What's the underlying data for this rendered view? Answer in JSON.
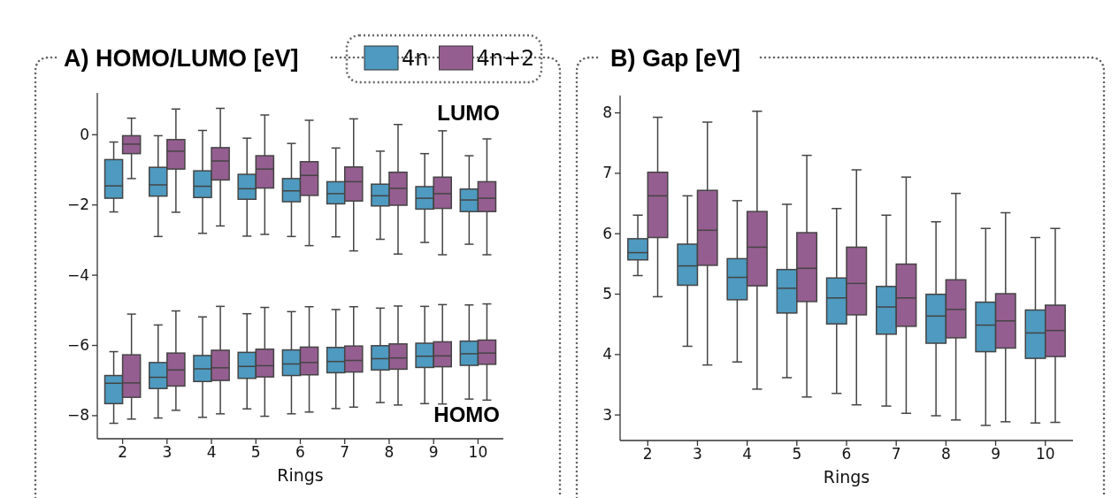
{
  "chart_data": [
    {
      "type": "box",
      "title": "A) HOMO/LUMO [eV]",
      "xlabel": "Rings",
      "categories": [
        "2",
        "3",
        "4",
        "5",
        "6",
        "7",
        "8",
        "9",
        "10"
      ],
      "ylim": [
        -8.67,
        1.18
      ],
      "yticks": [
        {
          "value": -8,
          "label": "−8"
        },
        {
          "value": -6,
          "label": "−6"
        },
        {
          "value": -4,
          "label": "−4"
        },
        {
          "value": -2,
          "label": "−2"
        },
        {
          "value": 0,
          "label": "0"
        }
      ],
      "legend": "top right",
      "annotations": [
        "LUMO",
        "HOMO"
      ],
      "series": [
        {
          "name": "4n",
          "color": "#4e9ac0",
          "boxes": [
            {
              "low": -2.21,
              "q1": -1.82,
              "median": -1.47,
              "q3": -0.72,
              "high": -0.22
            },
            {
              "low": -2.91,
              "q1": -1.76,
              "median": -1.44,
              "q3": -0.94,
              "high": -0.04
            },
            {
              "low": -2.82,
              "q1": -1.8,
              "median": -1.48,
              "q3": -1.04,
              "high": 0.11
            },
            {
              "low": -2.9,
              "q1": -1.85,
              "median": -1.55,
              "q3": -1.14,
              "high": -0.11
            },
            {
              "low": -2.91,
              "q1": -1.92,
              "median": -1.61,
              "q3": -1.26,
              "high": -0.26
            },
            {
              "low": -2.92,
              "q1": -1.98,
              "median": -1.69,
              "q3": -1.35,
              "high": -0.39
            },
            {
              "low": -2.99,
              "q1": -2.04,
              "median": -1.75,
              "q3": -1.42,
              "high": -0.48
            },
            {
              "low": -3.08,
              "q1": -2.13,
              "median": -1.82,
              "q3": -1.49,
              "high": -0.55
            },
            {
              "low": -3.13,
              "q1": -2.2,
              "median": -1.87,
              "q3": -1.56,
              "high": -0.61
            }
          ]
        },
        {
          "name": "4n+2",
          "color": "#955e90",
          "boxes": [
            {
              "low": -1.26,
              "q1": -0.55,
              "median": -0.28,
              "q3": -0.04,
              "high": 0.46
            },
            {
              "low": -2.22,
              "q1": -0.99,
              "median": -0.48,
              "q3": -0.15,
              "high": 0.72
            },
            {
              "low": -2.61,
              "q1": -1.3,
              "median": -0.76,
              "q3": -0.38,
              "high": 0.74
            },
            {
              "low": -2.85,
              "q1": -1.53,
              "median": -0.99,
              "q3": -0.61,
              "high": 0.55
            },
            {
              "low": -3.17,
              "q1": -1.74,
              "median": -1.17,
              "q3": -0.78,
              "high": 0.4
            },
            {
              "low": -3.32,
              "q1": -1.9,
              "median": -1.35,
              "q3": -0.93,
              "high": 0.44
            },
            {
              "low": -3.41,
              "q1": -2.02,
              "median": -1.54,
              "q3": -1.08,
              "high": 0.28
            },
            {
              "low": -3.43,
              "q1": -2.11,
              "median": -1.69,
              "q3": -1.22,
              "high": 0.1
            },
            {
              "low": -3.43,
              "q1": -2.2,
              "median": -1.82,
              "q3": -1.35,
              "high": -0.13
            }
          ]
        },
        {
          "color": "#4e9ac0",
          "boxes": [
            {
              "low": -8.23,
              "q1": -7.67,
              "median": -7.09,
              "q3": -6.87,
              "high": -6.19
            },
            {
              "low": -8.08,
              "q1": -7.24,
              "median": -6.92,
              "q3": -6.5,
              "high": -5.43
            },
            {
              "low": -8.06,
              "q1": -7.04,
              "median": -6.68,
              "q3": -6.3,
              "high": -5.2
            },
            {
              "low": -7.82,
              "q1": -6.95,
              "median": -6.61,
              "q3": -6.21,
              "high": -5.11
            },
            {
              "low": -7.96,
              "q1": -6.87,
              "median": -6.54,
              "q3": -6.14,
              "high": -5.05
            },
            {
              "low": -7.81,
              "q1": -6.79,
              "median": -6.47,
              "q3": -6.07,
              "high": -4.99
            },
            {
              "low": -7.64,
              "q1": -6.71,
              "median": -6.39,
              "q3": -6.02,
              "high": -4.95
            },
            {
              "low": -7.67,
              "q1": -6.64,
              "median": -6.32,
              "q3": -5.95,
              "high": -4.9
            },
            {
              "low": -7.54,
              "q1": -6.58,
              "median": -6.25,
              "q3": -5.89,
              "high": -4.86
            }
          ]
        },
        {
          "color": "#955e90",
          "boxes": [
            {
              "low": -8.11,
              "q1": -7.49,
              "median": -7.08,
              "q3": -6.28,
              "high": -5.12
            },
            {
              "low": -7.86,
              "q1": -7.17,
              "median": -6.71,
              "q3": -6.23,
              "high": -5.03
            },
            {
              "low": -7.96,
              "q1": -7.01,
              "median": -6.65,
              "q3": -6.15,
              "high": -4.9
            },
            {
              "low": -8.03,
              "q1": -6.91,
              "median": -6.59,
              "q3": -6.12,
              "high": -4.93
            },
            {
              "low": -7.91,
              "q1": -6.85,
              "median": -6.5,
              "q3": -6.06,
              "high": -4.91
            },
            {
              "low": -7.77,
              "q1": -6.77,
              "median": -6.44,
              "q3": -6.03,
              "high": -4.91
            },
            {
              "low": -7.71,
              "q1": -6.69,
              "median": -6.37,
              "q3": -5.97,
              "high": -4.89
            },
            {
              "low": -7.68,
              "q1": -6.62,
              "median": -6.31,
              "q3": -5.91,
              "high": -4.85
            },
            {
              "low": -7.57,
              "q1": -6.55,
              "median": -6.23,
              "q3": -5.86,
              "high": -4.83
            }
          ]
        }
      ]
    },
    {
      "type": "box",
      "title": "B) Gap [eV]",
      "xlabel": "Rings",
      "categories": [
        "2",
        "3",
        "4",
        "5",
        "6",
        "7",
        "8",
        "9",
        "10"
      ],
      "ylim": [
        2.57,
        8.28
      ],
      "yticks": [
        3,
        4,
        5,
        6,
        7,
        8
      ],
      "series": [
        {
          "color": "#4e9ac0",
          "boxes": [
            {
              "low": 5.3,
              "q1": 5.56,
              "median": 5.68,
              "q3": 5.91,
              "high": 6.3
            },
            {
              "low": 4.13,
              "q1": 5.14,
              "median": 5.46,
              "q3": 5.82,
              "high": 6.62
            },
            {
              "low": 3.87,
              "q1": 4.9,
              "median": 5.27,
              "q3": 5.58,
              "high": 6.54
            },
            {
              "low": 3.61,
              "q1": 4.68,
              "median": 5.09,
              "q3": 5.4,
              "high": 6.48
            },
            {
              "low": 3.35,
              "q1": 4.5,
              "median": 4.93,
              "q3": 5.26,
              "high": 6.41
            },
            {
              "low": 3.14,
              "q1": 4.33,
              "median": 4.78,
              "q3": 5.12,
              "high": 6.3
            },
            {
              "low": 2.98,
              "q1": 4.18,
              "median": 4.63,
              "q3": 4.99,
              "high": 6.19
            },
            {
              "low": 2.82,
              "q1": 4.04,
              "median": 4.48,
              "q3": 4.86,
              "high": 6.08
            },
            {
              "low": 2.86,
              "q1": 3.93,
              "median": 4.35,
              "q3": 4.73,
              "high": 5.93
            }
          ]
        },
        {
          "color": "#955e90",
          "boxes": [
            {
              "low": 4.95,
              "q1": 5.93,
              "median": 6.62,
              "q3": 7.01,
              "high": 7.92
            },
            {
              "low": 3.82,
              "q1": 5.47,
              "median": 6.05,
              "q3": 6.71,
              "high": 7.84
            },
            {
              "low": 3.42,
              "q1": 5.13,
              "median": 5.77,
              "q3": 6.36,
              "high": 8.02
            },
            {
              "low": 3.29,
              "q1": 4.87,
              "median": 5.42,
              "q3": 6.01,
              "high": 7.29
            },
            {
              "low": 3.16,
              "q1": 4.65,
              "median": 5.17,
              "q3": 5.77,
              "high": 7.05
            },
            {
              "low": 3.02,
              "q1": 4.46,
              "median": 4.93,
              "q3": 5.49,
              "high": 6.93
            },
            {
              "low": 2.91,
              "q1": 4.27,
              "median": 4.74,
              "q3": 5.23,
              "high": 6.66
            },
            {
              "low": 2.88,
              "q1": 4.1,
              "median": 4.55,
              "q3": 5.0,
              "high": 6.34
            },
            {
              "low": 2.87,
              "q1": 3.96,
              "median": 4.39,
              "q3": 4.81,
              "high": 6.08
            }
          ]
        }
      ]
    }
  ]
}
